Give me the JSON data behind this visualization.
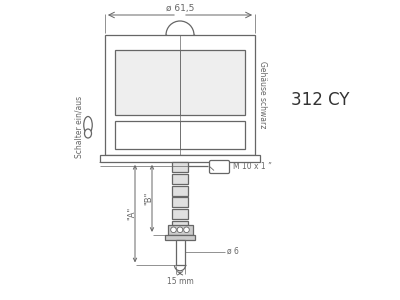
{
  "bg_color": "#ffffff",
  "line_color": "#666666",
  "dim_color": "#666666",
  "text_color": "#333333",
  "title": "312 CY",
  "label_diameter": "ø 61,5",
  "label_m10": "M 10 x 1 ”",
  "label_phi6": "ø 6",
  "label_15mm": "15 mm",
  "label_A": "\"A\"",
  "label_B": "\"B\"",
  "label_schalter": "Schalter ein/aus",
  "label_gehaeuse": "Gehäuse schwarz"
}
